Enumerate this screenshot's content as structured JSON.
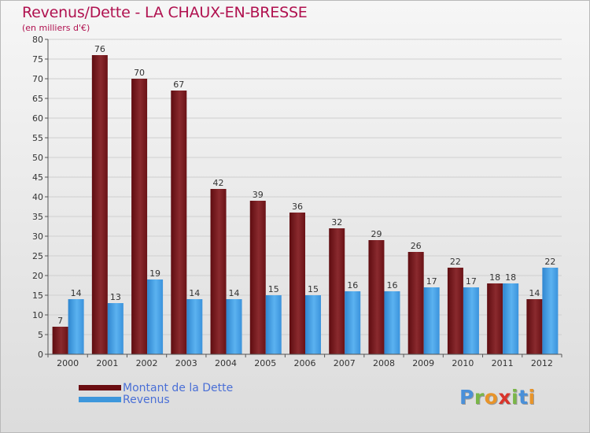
{
  "header": {
    "title": "Revenus/Dette - LA CHAUX-EN-BRESSE",
    "subtitle": "(en milliers d'€)"
  },
  "colors": {
    "title": "#b0114f",
    "debt": "#7c1f22",
    "debt_light": "#9b3438",
    "revenue": "#4aa3e6",
    "revenue_dark": "#2e7dc4",
    "axis": "#555555",
    "grid": "#cfcfcf",
    "legend_text": "#4a6fd6"
  },
  "legend": {
    "items": [
      {
        "label": "Montant de la Dette",
        "color": "#6b0e12"
      },
      {
        "label": "Revenus",
        "color": "#3d97dc"
      }
    ]
  },
  "logo": {
    "letters": [
      {
        "ch": "P",
        "color": "#4a90d9"
      },
      {
        "ch": "r",
        "color": "#7ab648"
      },
      {
        "ch": "o",
        "color": "#e8942a"
      },
      {
        "ch": "x",
        "color": "#d9342b"
      },
      {
        "ch": "i",
        "color": "#7ab648"
      },
      {
        "ch": "t",
        "color": "#4a90d9"
      },
      {
        "ch": "i",
        "color": "#e8942a"
      }
    ]
  },
  "chart_data": {
    "type": "bar",
    "title": "Revenus/Dette - LA CHAUX-EN-BRESSE",
    "ylabel": "(en milliers d'€)",
    "xlabel": "",
    "categories": [
      "2000",
      "2001",
      "2002",
      "2003",
      "2004",
      "2005",
      "2006",
      "2007",
      "2008",
      "2009",
      "2010",
      "2011",
      "2012"
    ],
    "ylim": [
      0,
      80
    ],
    "yticks": [
      0,
      5,
      10,
      15,
      20,
      25,
      30,
      35,
      40,
      45,
      50,
      55,
      60,
      65,
      70,
      75,
      80
    ],
    "grid": true,
    "legend_position": "bottom-left",
    "series": [
      {
        "name": "Montant de la Dette",
        "values": [
          7,
          76,
          70,
          67,
          42,
          39,
          36,
          32,
          29,
          26,
          22,
          18,
          14
        ]
      },
      {
        "name": "Revenus",
        "values": [
          14,
          13,
          19,
          14,
          14,
          15,
          15,
          16,
          16,
          17,
          17,
          18,
          22
        ]
      }
    ]
  }
}
